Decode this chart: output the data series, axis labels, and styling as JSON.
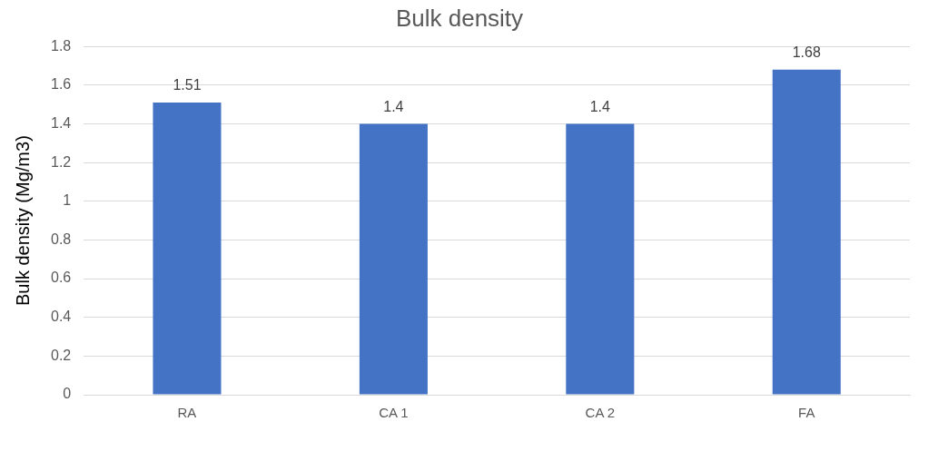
{
  "chart_data": {
    "type": "bar",
    "title": "Bulk density",
    "ylabel": "Bulk density (Mg/m3)",
    "categories": [
      "RA",
      "CA 1",
      "CA 2",
      "FA"
    ],
    "values": [
      1.51,
      1.4,
      1.4,
      1.68
    ],
    "color": "#4472c4",
    "ylim": [
      0,
      1.8
    ],
    "yticks": [
      0,
      0.2,
      0.4,
      0.6,
      0.8,
      1,
      1.2,
      1.4,
      1.6,
      1.8
    ],
    "grid": "y",
    "data_labels": true
  }
}
